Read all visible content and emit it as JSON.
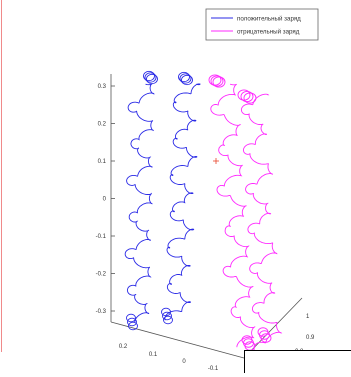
{
  "chart_data": {
    "type": "line",
    "projection": "3d",
    "grid": false,
    "legend_position": "top-right",
    "series": [
      {
        "name": "положительный заряд",
        "color": "#2a2ae6"
      },
      {
        "name": "отрицательный заряд",
        "color": "#ff2aff"
      }
    ],
    "marker": {
      "label": "start point",
      "color": "#e8442a"
    },
    "zaxis": {
      "ticks": [
        "0.3",
        "0.2",
        "0.1",
        "0",
        "-0.1",
        "-0.2",
        "-0.3"
      ],
      "lim": [
        -0.35,
        0.35
      ]
    },
    "xaxis": {
      "ticks": [
        "0.2",
        "0.1",
        "0",
        "-0.1"
      ]
    },
    "yaxis": {
      "ticks": [
        "1",
        "0.9",
        "0.8"
      ]
    }
  }
}
